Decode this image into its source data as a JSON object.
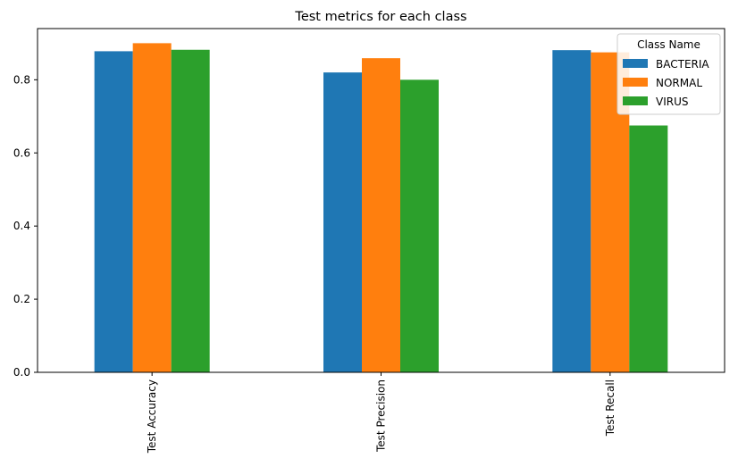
{
  "chart_data": {
    "type": "bar",
    "title": "Test metrics for each class",
    "xlabel": "",
    "ylabel": "",
    "categories": [
      "Test Accuracy",
      "Test Precision",
      "Test Recall"
    ],
    "series": [
      {
        "name": "BACTERIA",
        "color": "#1f77b4",
        "values": [
          0.878,
          0.82,
          0.881
        ]
      },
      {
        "name": "NORMAL",
        "color": "#ff7f0e",
        "values": [
          0.9,
          0.859,
          0.875
        ]
      },
      {
        "name": "VIRUS",
        "color": "#2ca02c",
        "values": [
          0.882,
          0.8,
          0.675
        ]
      }
    ],
    "ylim": [
      0,
      0.94
    ],
    "yticks": [
      "0.0",
      "0.2",
      "0.4",
      "0.6",
      "0.8"
    ],
    "ytick_values": [
      0.0,
      0.2,
      0.4,
      0.6,
      0.8
    ],
    "grid": false,
    "legend": {
      "title": "Class Name",
      "placement": "top-right"
    }
  }
}
